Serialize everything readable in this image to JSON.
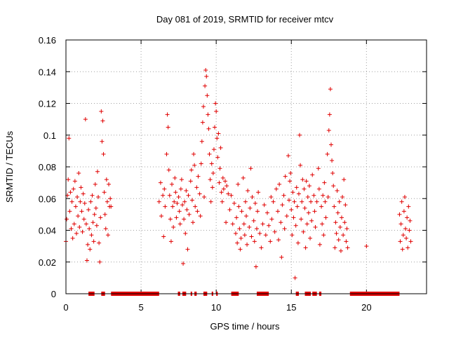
{
  "chart_data": {
    "type": "scatter",
    "title": "Day 081 of 2019, SRMTID for receiver mtcv",
    "xlabel": "GPS time / hours",
    "ylabel": "SRMTID / TECUs",
    "xlim": [
      0,
      24
    ],
    "ylim": [
      0,
      0.16
    ],
    "grid": true,
    "x_ticks": [
      0,
      5,
      10,
      15,
      20
    ],
    "x_tick_labels": [
      "0",
      "5",
      "10",
      "15",
      "20"
    ],
    "y_ticks": [
      0,
      0.02,
      0.04,
      0.06,
      0.08,
      0.1,
      0.12,
      0.14,
      0.16
    ],
    "y_tick_labels": [
      "0",
      "0.02",
      "0.04",
      "0.06",
      "0.08",
      "0.1",
      "0.12",
      "0.14",
      "0.16"
    ],
    "marker": "+",
    "series": [
      {
        "name": "SRMTID",
        "color": "#e00000",
        "points": [
          [
            0.0,
            0.033
          ],
          [
            0.05,
            0.047
          ],
          [
            0.1,
            0.062
          ],
          [
            0.15,
            0.072
          ],
          [
            0.2,
            0.098
          ],
          [
            0.25,
            0.052
          ],
          [
            0.3,
            0.064
          ],
          [
            0.35,
            0.041
          ],
          [
            0.4,
            0.058
          ],
          [
            0.45,
            0.035
          ],
          [
            0.5,
            0.066
          ],
          [
            0.55,
            0.044
          ],
          [
            0.6,
            0.071
          ],
          [
            0.65,
            0.055
          ],
          [
            0.7,
            0.038
          ],
          [
            0.75,
            0.061
          ],
          [
            0.8,
            0.049
          ],
          [
            0.85,
            0.076
          ],
          [
            0.9,
            0.042
          ],
          [
            0.95,
            0.058
          ],
          [
            1.0,
            0.067
          ],
          [
            1.05,
            0.052
          ],
          [
            1.1,
            0.039
          ],
          [
            1.15,
            0.063
          ],
          [
            1.2,
            0.047
          ],
          [
            1.25,
            0.057
          ],
          [
            1.3,
            0.11
          ],
          [
            1.35,
            0.044
          ],
          [
            1.4,
            0.021
          ],
          [
            1.45,
            0.031
          ],
          [
            1.5,
            0.053
          ],
          [
            1.55,
            0.041
          ],
          [
            1.6,
            0.028
          ],
          [
            1.65,
            0.058
          ],
          [
            1.7,
            0.037
          ],
          [
            1.75,
            0.062
          ],
          [
            1.8,
            0.045
          ],
          [
            1.85,
            0.033
          ],
          [
            1.9,
            0.05
          ],
          [
            1.95,
            0.069
          ],
          [
            2.0,
            0.054
          ],
          [
            2.05,
            0.043
          ],
          [
            2.1,
            0.077
          ],
          [
            2.15,
            0.061
          ],
          [
            2.2,
            0.032
          ],
          [
            2.25,
            0.02
          ],
          [
            2.3,
            0.048
          ],
          [
            2.35,
            0.115
          ],
          [
            2.4,
            0.096
          ],
          [
            2.45,
            0.109
          ],
          [
            2.5,
            0.088
          ],
          [
            2.55,
            0.064
          ],
          [
            2.6,
            0.05
          ],
          [
            2.65,
            0.041
          ],
          [
            2.7,
            0.072
          ],
          [
            2.75,
            0.058
          ],
          [
            2.8,
            0.037
          ],
          [
            2.85,
            0.069
          ],
          [
            2.9,
            0.055
          ],
          [
            2.95,
            0.06
          ],
          [
            3.0,
            0.055
          ],
          [
            6.2,
            0.058
          ],
          [
            6.3,
            0.07
          ],
          [
            6.35,
            0.049
          ],
          [
            6.45,
            0.062
          ],
          [
            6.5,
            0.036
          ],
          [
            6.55,
            0.066
          ],
          [
            6.6,
            0.055
          ],
          [
            6.7,
            0.088
          ],
          [
            6.75,
            0.113
          ],
          [
            6.8,
            0.105
          ],
          [
            6.85,
            0.078
          ],
          [
            6.9,
            0.062
          ],
          [
            6.95,
            0.047
          ],
          [
            7.0,
            0.033
          ],
          [
            7.05,
            0.069
          ],
          [
            7.1,
            0.055
          ],
          [
            7.15,
            0.042
          ],
          [
            7.2,
            0.058
          ],
          [
            7.25,
            0.073
          ],
          [
            7.3,
            0.064
          ],
          [
            7.35,
            0.048
          ],
          [
            7.4,
            0.057
          ],
          [
            7.5,
            0.061
          ],
          [
            7.55,
            0.052
          ],
          [
            7.6,
            0.044
          ],
          [
            7.65,
            0.066
          ],
          [
            7.7,
            0.072
          ],
          [
            7.75,
            0.056
          ],
          [
            7.8,
            0.019
          ],
          [
            7.85,
            0.047
          ],
          [
            7.9,
            0.058
          ],
          [
            7.95,
            0.038
          ],
          [
            8.0,
            0.065
          ],
          [
            8.05,
            0.053
          ],
          [
            8.1,
            0.028
          ],
          [
            8.15,
            0.062
          ],
          [
            8.2,
            0.05
          ],
          [
            8.3,
            0.071
          ],
          [
            8.35,
            0.078
          ],
          [
            8.4,
            0.059
          ],
          [
            8.45,
            0.045
          ],
          [
            8.5,
            0.088
          ],
          [
            8.55,
            0.081
          ],
          [
            8.6,
            0.055
          ],
          [
            8.7,
            0.067
          ],
          [
            8.75,
            0.052
          ],
          [
            8.8,
            0.074
          ],
          [
            8.9,
            0.063
          ],
          [
            8.95,
            0.049
          ],
          [
            9.0,
            0.082
          ],
          [
            9.05,
            0.096
          ],
          [
            9.1,
            0.108
          ],
          [
            9.15,
            0.118
          ],
          [
            9.2,
            0.061
          ],
          [
            9.25,
            0.131
          ],
          [
            9.3,
            0.141
          ],
          [
            9.35,
            0.137
          ],
          [
            9.4,
            0.125
          ],
          [
            9.45,
            0.113
          ],
          [
            9.5,
            0.104
          ],
          [
            9.55,
            0.088
          ],
          [
            9.6,
            0.072
          ],
          [
            9.65,
            0.058
          ],
          [
            9.7,
            0.082
          ],
          [
            9.75,
            0.067
          ],
          [
            9.8,
            0.076
          ],
          [
            9.85,
            0.091
          ],
          [
            9.9,
            0.105
          ],
          [
            9.95,
            0.12
          ],
          [
            10.0,
            0.115
          ],
          [
            10.05,
            0.098
          ],
          [
            10.1,
            0.086
          ],
          [
            10.15,
            0.101
          ],
          [
            10.2,
            0.07
          ],
          [
            10.25,
            0.079
          ],
          [
            10.3,
            0.092
          ],
          [
            10.35,
            0.064
          ],
          [
            10.4,
            0.058
          ],
          [
            10.45,
            0.073
          ],
          [
            10.5,
            0.066
          ],
          [
            10.6,
            0.071
          ],
          [
            10.65,
            0.045
          ],
          [
            10.7,
            0.068
          ],
          [
            10.8,
            0.063
          ],
          [
            10.9,
            0.053
          ],
          [
            11.0,
            0.062
          ],
          [
            11.1,
            0.044
          ],
          [
            11.2,
            0.057
          ],
          [
            11.3,
            0.038
          ],
          [
            11.35,
            0.048
          ],
          [
            11.4,
            0.032
          ],
          [
            11.45,
            0.069
          ],
          [
            11.5,
            0.055
          ],
          [
            11.55,
            0.041
          ],
          [
            11.6,
            0.028
          ],
          [
            11.65,
            0.035
          ],
          [
            11.7,
            0.052
          ],
          [
            11.8,
            0.073
          ],
          [
            11.85,
            0.044
          ],
          [
            11.9,
            0.037
          ],
          [
            11.95,
            0.058
          ],
          [
            12.0,
            0.049
          ],
          [
            12.05,
            0.031
          ],
          [
            12.1,
            0.065
          ],
          [
            12.2,
            0.042
          ],
          [
            12.25,
            0.054
          ],
          [
            12.3,
            0.079
          ],
          [
            12.35,
            0.036
          ],
          [
            12.4,
            0.061
          ],
          [
            12.5,
            0.046
          ],
          [
            12.55,
            0.033
          ],
          [
            12.6,
            0.057
          ],
          [
            12.65,
            0.017
          ],
          [
            12.7,
            0.041
          ],
          [
            12.75,
            0.052
          ],
          [
            12.8,
            0.064
          ],
          [
            12.9,
            0.038
          ],
          [
            13.0,
            0.029
          ],
          [
            13.1,
            0.044
          ],
          [
            13.2,
            0.056
          ],
          [
            13.3,
            0.037
          ],
          [
            13.4,
            0.051
          ],
          [
            13.5,
            0.043
          ],
          [
            13.6,
            0.033
          ],
          [
            13.65,
            0.061
          ],
          [
            13.7,
            0.047
          ],
          [
            13.8,
            0.058
          ],
          [
            13.9,
            0.039
          ],
          [
            14.0,
            0.066
          ],
          [
            14.1,
            0.052
          ],
          [
            14.15,
            0.034
          ],
          [
            14.2,
            0.069
          ],
          [
            14.3,
            0.045
          ],
          [
            14.35,
            0.023
          ],
          [
            14.4,
            0.056
          ],
          [
            14.5,
            0.062
          ],
          [
            14.55,
            0.041
          ],
          [
            14.6,
            0.074
          ],
          [
            14.7,
            0.049
          ],
          [
            14.8,
            0.087
          ],
          [
            14.85,
            0.059
          ],
          [
            14.9,
            0.071
          ],
          [
            14.95,
            0.076
          ],
          [
            15.0,
            0.053
          ],
          [
            15.05,
            0.037
          ],
          [
            15.1,
            0.064
          ],
          [
            15.15,
            0.048
          ],
          [
            15.2,
            0.058
          ],
          [
            15.25,
            0.01
          ],
          [
            15.3,
            0.043
          ],
          [
            15.35,
            0.067
          ],
          [
            15.4,
            0.055
          ],
          [
            15.45,
            0.032
          ],
          [
            15.5,
            0.063
          ],
          [
            15.55,
            0.1
          ],
          [
            15.6,
            0.081
          ],
          [
            15.65,
            0.047
          ],
          [
            15.7,
            0.058
          ],
          [
            15.75,
            0.072
          ],
          [
            15.8,
            0.039
          ],
          [
            15.85,
            0.066
          ],
          [
            15.9,
            0.054
          ],
          [
            15.95,
            0.029
          ],
          [
            16.0,
            0.071
          ],
          [
            16.05,
            0.044
          ],
          [
            16.1,
            0.061
          ],
          [
            16.15,
            0.051
          ],
          [
            16.2,
            0.068
          ],
          [
            16.25,
            0.035
          ],
          [
            16.3,
            0.058
          ],
          [
            16.35,
            0.046
          ],
          [
            16.4,
            0.075
          ],
          [
            16.5,
            0.062
          ],
          [
            16.55,
            0.052
          ],
          [
            16.6,
            0.042
          ],
          [
            16.7,
            0.058
          ],
          [
            16.8,
            0.079
          ],
          [
            16.85,
            0.066
          ],
          [
            16.9,
            0.031
          ],
          [
            17.0,
            0.055
          ],
          [
            17.05,
            0.044
          ],
          [
            17.1,
            0.062
          ],
          [
            17.15,
            0.037
          ],
          [
            17.2,
            0.07
          ],
          [
            17.25,
            0.058
          ],
          [
            17.3,
            0.048
          ],
          [
            17.4,
            0.088
          ],
          [
            17.45,
            0.061
          ],
          [
            17.5,
            0.103
          ],
          [
            17.55,
            0.113
          ],
          [
            17.6,
            0.129
          ],
          [
            17.65,
            0.094
          ],
          [
            17.7,
            0.084
          ],
          [
            17.75,
            0.076
          ],
          [
            17.8,
            0.068
          ],
          [
            17.85,
            0.055
          ],
          [
            17.9,
            0.029
          ],
          [
            17.95,
            0.045
          ],
          [
            18.0,
            0.038
          ],
          [
            18.05,
            0.065
          ],
          [
            18.1,
            0.051
          ],
          [
            18.15,
            0.034
          ],
          [
            18.2,
            0.058
          ],
          [
            18.25,
            0.042
          ],
          [
            18.3,
            0.027
          ],
          [
            18.35,
            0.048
          ],
          [
            18.4,
            0.061
          ],
          [
            18.45,
            0.037
          ],
          [
            18.5,
            0.072
          ],
          [
            18.55,
            0.045
          ],
          [
            18.6,
            0.056
          ],
          [
            18.65,
            0.033
          ],
          [
            18.7,
            0.041
          ],
          [
            18.75,
            0.029
          ],
          [
            20.0,
            0.03
          ],
          [
            22.2,
            0.05
          ],
          [
            22.25,
            0.033
          ],
          [
            22.3,
            0.044
          ],
          [
            22.35,
            0.058
          ],
          [
            22.4,
            0.028
          ],
          [
            22.45,
            0.037
          ],
          [
            22.5,
            0.052
          ],
          [
            22.55,
            0.061
          ],
          [
            22.6,
            0.041
          ],
          [
            22.65,
            0.035
          ],
          [
            22.7,
            0.048
          ],
          [
            22.75,
            0.029
          ],
          [
            22.8,
            0.055
          ],
          [
            22.85,
            0.04
          ],
          [
            22.9,
            0.046
          ],
          [
            22.95,
            0.033
          ]
        ]
      }
    ],
    "zero_bands": [
      [
        1.5,
        1.9
      ],
      [
        2.35,
        2.6
      ],
      [
        3.0,
        6.2
      ],
      [
        7.45,
        7.6
      ],
      [
        7.75,
        8.0
      ],
      [
        8.3,
        8.4
      ],
      [
        8.55,
        8.7
      ],
      [
        9.15,
        9.4
      ],
      [
        9.7,
        9.8
      ],
      [
        10.0,
        10.1
      ],
      [
        11.0,
        11.5
      ],
      [
        12.7,
        13.5
      ],
      [
        15.3,
        15.5
      ],
      [
        15.9,
        16.3
      ],
      [
        16.4,
        16.7
      ],
      [
        16.85,
        17.0
      ],
      [
        18.9,
        22.2
      ]
    ]
  }
}
